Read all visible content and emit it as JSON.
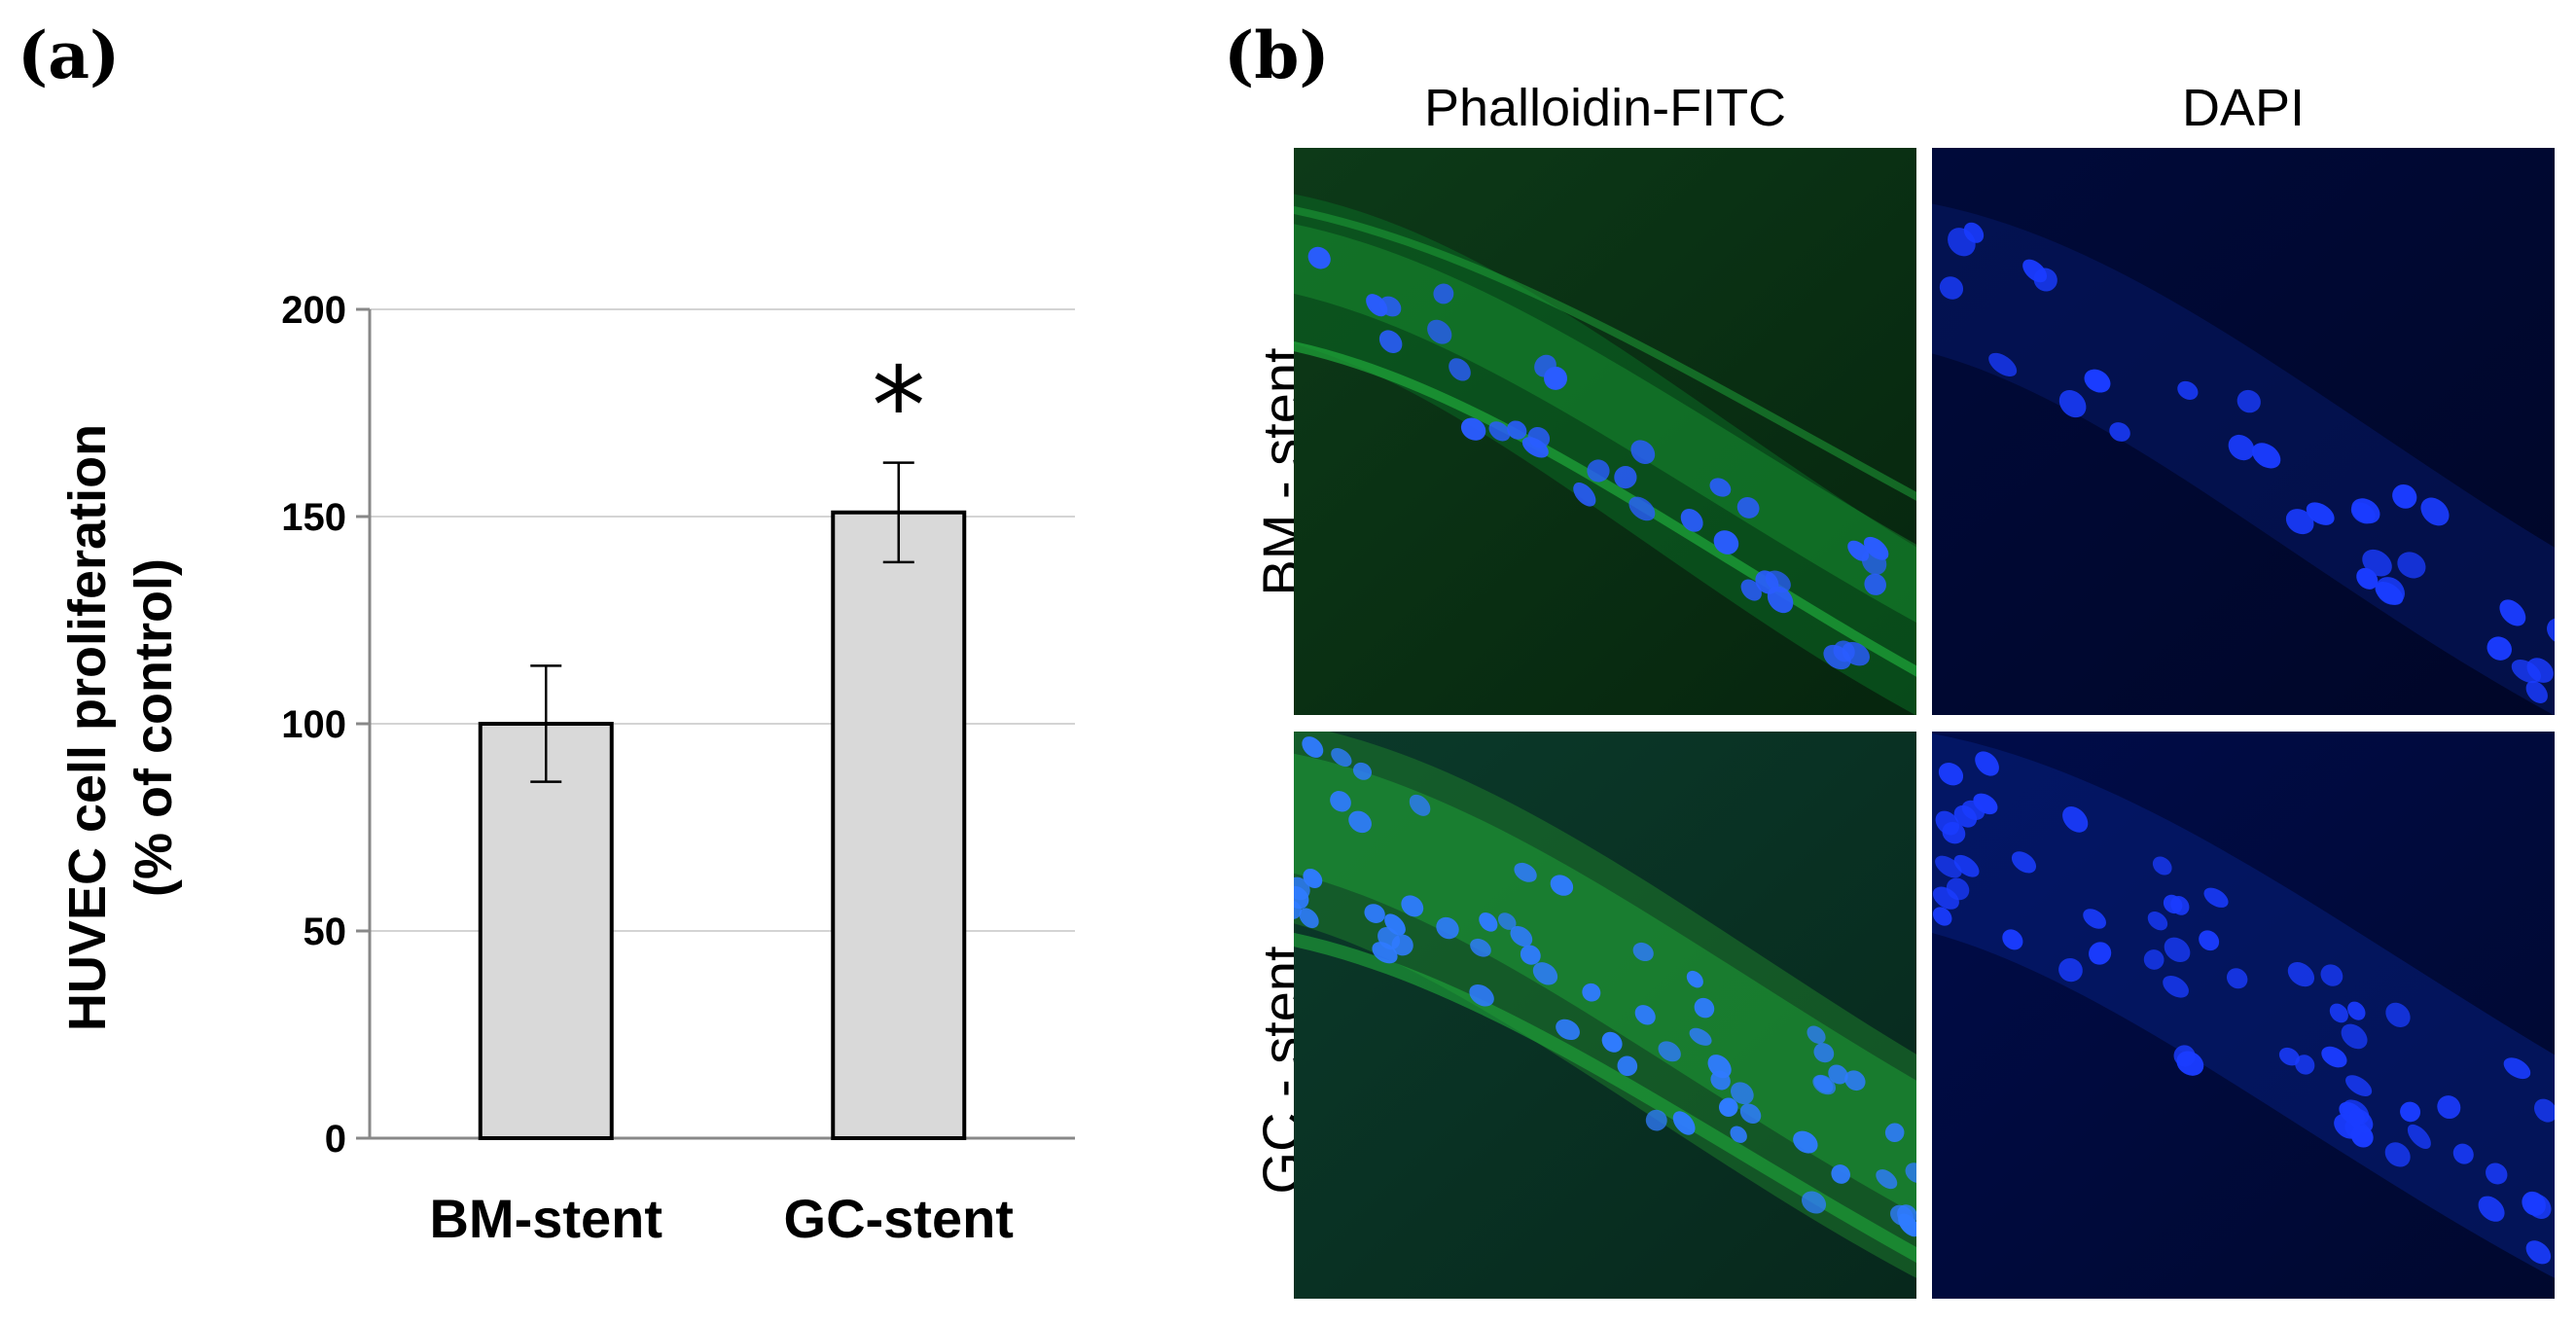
{
  "panels": {
    "a_label": "(a)",
    "b_label": "(b)"
  },
  "chart_data": {
    "type": "bar",
    "categories": [
      "BM-stent",
      "GC-stent"
    ],
    "values": [
      100,
      151
    ],
    "error": [
      14,
      12
    ],
    "significance": [
      "",
      "*"
    ],
    "ylabel_line1": "HUVEC cell proliferation",
    "ylabel_line2": "(% of control)",
    "ylim": [
      0,
      200
    ],
    "yticks": [
      0,
      50,
      100,
      150,
      200
    ],
    "grid": true,
    "bar_color": "#d9d9d9"
  },
  "micrographs": {
    "columns": [
      "Phalloidin-FITC",
      "DAPI"
    ],
    "rows": [
      "BM - stent",
      "GC - stent"
    ],
    "stain_colors": {
      "phalloidin": "#1fa83a",
      "dapi": "#1a3cff"
    }
  }
}
